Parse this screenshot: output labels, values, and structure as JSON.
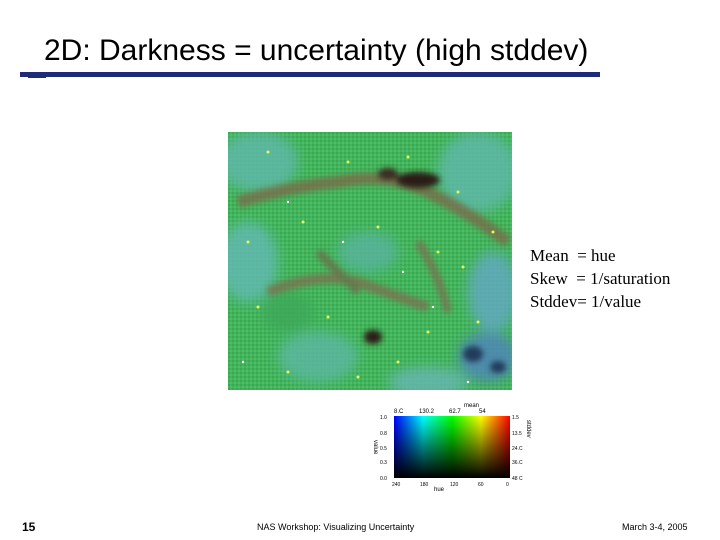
{
  "slide": {
    "title": "2D: Darkness = uncertainty (high stddev)",
    "annotations": [
      "Mean  = hue",
      "Skew  = 1/saturation",
      "Stddev= 1/value"
    ],
    "slide_number": "15",
    "footer_center": "NAS Workshop: Visualizing Uncertainty",
    "footer_date": "March 3-4, 2005"
  },
  "legend": {
    "top_label": "mean",
    "top_ticks": [
      "8.C",
      "130.2",
      "62.7",
      "54"
    ],
    "left_label": "value",
    "left_ticks": [
      "1.0",
      "0.8",
      "0.5",
      "0.3",
      "0.0"
    ],
    "right_label": "stddev",
    "right_ticks": [
      "1.5",
      "13.5",
      "24.C",
      "36.C",
      "48 C"
    ],
    "bottom_label": "hue",
    "bottom_ticks": [
      "240",
      "180",
      "120",
      "60",
      "0"
    ]
  },
  "colors": {
    "title_rule": "#1f2a78",
    "map_base": "#3cb85a",
    "map_dark": "#4a3328",
    "map_blue": "#4a7fb0"
  }
}
